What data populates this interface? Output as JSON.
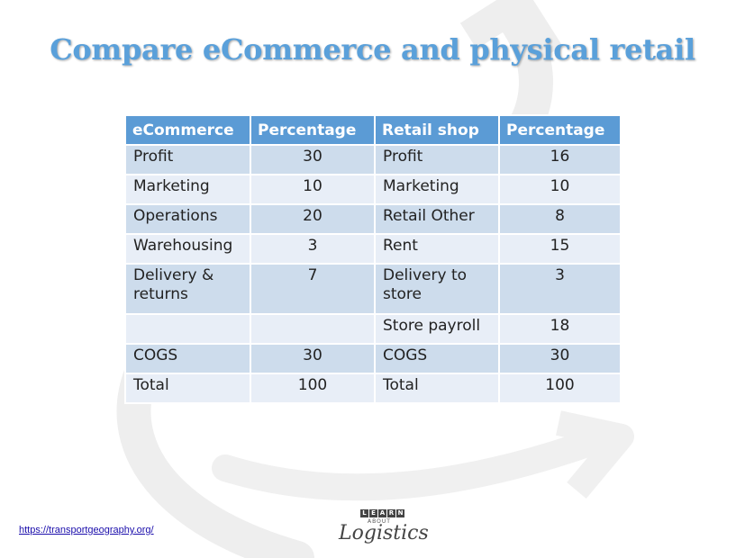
{
  "slide": {
    "title": "Compare eCommerce and physical retail"
  },
  "table": {
    "headers": [
      "eCommerce",
      "Percentage",
      "Retail shop",
      "Percentage"
    ],
    "rows": [
      [
        "Profit",
        "30",
        "Profit",
        "16"
      ],
      [
        "Marketing",
        "10",
        "Marketing",
        "10"
      ],
      [
        "Operations",
        "20",
        "Retail Other",
        "8"
      ],
      [
        "Warehousing",
        "3",
        "Rent",
        "15"
      ],
      [
        "Delivery & returns",
        "7",
        "Delivery to store",
        "3"
      ],
      [
        "",
        "",
        "Store payroll",
        "18"
      ],
      [
        "COGS",
        "30",
        "COGS",
        "30"
      ],
      [
        "Total",
        "100",
        "Total",
        "100"
      ]
    ]
  },
  "footer": {
    "link_text": "https://transportgeography.org/"
  },
  "logo": {
    "letters": [
      "L",
      "E",
      "A",
      "R",
      "N"
    ],
    "about": "ABOUT",
    "word": "Logistics"
  },
  "colors": {
    "title": "#5aa0da",
    "header_bg": "#5b9bd5",
    "row_dark": "#cddcec",
    "row_light": "#e8eef7"
  }
}
